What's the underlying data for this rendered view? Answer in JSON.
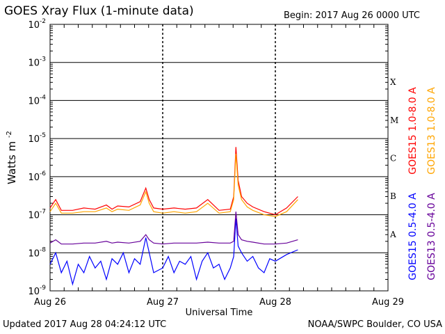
{
  "header": {
    "title": "GOES Xray Flux (1-minute data)",
    "begin": "Begin:  2017 Aug 26 0000 UTC"
  },
  "footer": {
    "updated": "Updated 2017 Aug 28 04:24:12 UTC",
    "credit": "NOAA/SWPC Boulder, CO USA"
  },
  "chart_data": {
    "type": "line",
    "title": "GOES Xray Flux (1-minute data)",
    "xlabel": "Universal Time",
    "ylabel": "Watts m",
    "ylabel_superscript": "-2",
    "y_scale": "log",
    "ylim": [
      1e-09,
      0.01
    ],
    "xlim": [
      "Aug 26",
      "Aug 29"
    ],
    "x_unit": "days since 2017 Aug 26 0000 UTC",
    "x_ticks": [
      {
        "label": "Aug 26",
        "day": 0
      },
      {
        "label": "Aug 27",
        "day": 1
      },
      {
        "label": "Aug 28",
        "day": 2
      },
      {
        "label": "Aug 29",
        "day": 3
      }
    ],
    "y_ticks": [
      {
        "exp": -2
      },
      {
        "exp": -3
      },
      {
        "exp": -4
      },
      {
        "exp": -5
      },
      {
        "exp": -6
      },
      {
        "exp": -7
      },
      {
        "exp": -8
      },
      {
        "exp": -9
      }
    ],
    "flare_classes": [
      {
        "label": "X",
        "exp": -4
      },
      {
        "label": "M",
        "exp": -5
      },
      {
        "label": "C",
        "exp": -6
      },
      {
        "label": "B",
        "exp": -7
      },
      {
        "label": "A",
        "exp": -8
      }
    ],
    "grid": true,
    "legend": [
      {
        "label": "GOES15 1.0-8.0 A",
        "color": "#ff0000"
      },
      {
        "label": "GOES13 1.0-8.0 A",
        "color": "#ffa500"
      },
      {
        "label": "GOES15 0.5-4.0 A",
        "color": "#0000ff"
      },
      {
        "label": "GOES13 0.5-4.0 A",
        "color": "#660099"
      }
    ],
    "series": [
      {
        "name": "GOES15 1.0-8.0 A",
        "color": "#ff0000",
        "x": [
          0.0,
          0.05,
          0.1,
          0.2,
          0.3,
          0.4,
          0.5,
          0.55,
          0.6,
          0.7,
          0.8,
          0.85,
          0.88,
          0.92,
          1.0,
          1.1,
          1.2,
          1.3,
          1.4,
          1.5,
          1.6,
          1.63,
          1.65,
          1.67,
          1.7,
          1.75,
          1.8,
          1.9,
          2.0,
          2.1,
          2.2
        ],
        "values": [
          1.5e-07,
          2.5e-07,
          1.3e-07,
          1.3e-07,
          1.5e-07,
          1.4e-07,
          1.8e-07,
          1.4e-07,
          1.7e-07,
          1.6e-07,
          2.2e-07,
          5e-07,
          2.5e-07,
          1.5e-07,
          1.4e-07,
          1.5e-07,
          1.4e-07,
          1.5e-07,
          2.5e-07,
          1.3e-07,
          1.4e-07,
          3e-07,
          6e-06,
          8e-07,
          3e-07,
          2e-07,
          1.6e-07,
          1.2e-07,
          1e-07,
          1.5e-07,
          3e-07
        ]
      },
      {
        "name": "GOES13 1.0-8.0 A",
        "color": "#ffa500",
        "x": [
          0.0,
          0.05,
          0.1,
          0.2,
          0.3,
          0.4,
          0.5,
          0.55,
          0.6,
          0.7,
          0.8,
          0.85,
          0.88,
          0.92,
          1.0,
          1.1,
          1.2,
          1.3,
          1.4,
          1.5,
          1.6,
          1.63,
          1.65,
          1.67,
          1.7,
          1.75,
          1.8,
          1.9,
          2.0,
          2.1,
          2.2
        ],
        "values": [
          1.2e-07,
          2e-07,
          1.1e-07,
          1.1e-07,
          1.2e-07,
          1.2e-07,
          1.5e-07,
          1.2e-07,
          1.4e-07,
          1.3e-07,
          1.8e-07,
          4e-07,
          2e-07,
          1.2e-07,
          1.1e-07,
          1.2e-07,
          1.1e-07,
          1.2e-07,
          2e-07,
          1.1e-07,
          1.2e-07,
          2.5e-07,
          4e-06,
          6e-07,
          2.5e-07,
          1.6e-07,
          1.3e-07,
          1e-07,
          9e-08,
          1.2e-07,
          2.5e-07
        ]
      },
      {
        "name": "GOES15 0.5-4.0 A",
        "color": "#0000ff",
        "x": [
          0.0,
          0.05,
          0.1,
          0.15,
          0.2,
          0.25,
          0.3,
          0.35,
          0.4,
          0.45,
          0.5,
          0.55,
          0.6,
          0.65,
          0.7,
          0.75,
          0.8,
          0.85,
          0.88,
          0.92,
          1.0,
          1.05,
          1.1,
          1.15,
          1.2,
          1.25,
          1.3,
          1.35,
          1.4,
          1.45,
          1.5,
          1.55,
          1.6,
          1.63,
          1.65,
          1.67,
          1.7,
          1.75,
          1.8,
          1.85,
          1.9,
          1.95,
          2.0,
          2.1,
          2.2
        ],
        "values": [
          5e-09,
          1e-08,
          3e-09,
          6e-09,
          1.5e-09,
          5e-09,
          3e-09,
          8e-09,
          4e-09,
          6e-09,
          2e-09,
          7e-09,
          5e-09,
          1e-08,
          3e-09,
          7e-09,
          5e-09,
          2.5e-08,
          1e-08,
          3e-09,
          4e-09,
          8e-09,
          3e-09,
          6e-09,
          5e-09,
          8e-09,
          2e-09,
          6e-09,
          1e-08,
          4e-09,
          5e-09,
          2e-09,
          4e-09,
          8e-09,
          8e-08,
          1.5e-08,
          1e-08,
          6e-09,
          8e-09,
          4e-09,
          3e-09,
          7e-09,
          6e-09,
          9e-09,
          1.2e-08
        ]
      },
      {
        "name": "GOES13 0.5-4.0 A",
        "color": "#660099",
        "x": [
          0.0,
          0.05,
          0.1,
          0.2,
          0.3,
          0.4,
          0.5,
          0.55,
          0.6,
          0.7,
          0.8,
          0.85,
          0.88,
          0.92,
          1.0,
          1.1,
          1.2,
          1.3,
          1.4,
          1.5,
          1.6,
          1.63,
          1.65,
          1.67,
          1.7,
          1.75,
          1.8,
          1.9,
          2.0,
          2.1,
          2.2
        ],
        "values": [
          1.8e-08,
          2.2e-08,
          1.7e-08,
          1.7e-08,
          1.8e-08,
          1.8e-08,
          2e-08,
          1.8e-08,
          1.9e-08,
          1.8e-08,
          2e-08,
          3e-08,
          2.2e-08,
          1.8e-08,
          1.7e-08,
          1.8e-08,
          1.8e-08,
          1.8e-08,
          1.9e-08,
          1.8e-08,
          1.8e-08,
          2e-08,
          1.2e-07,
          3e-08,
          2.2e-08,
          2e-08,
          1.9e-08,
          1.7e-08,
          1.7e-08,
          1.8e-08,
          2.2e-08
        ]
      }
    ]
  }
}
